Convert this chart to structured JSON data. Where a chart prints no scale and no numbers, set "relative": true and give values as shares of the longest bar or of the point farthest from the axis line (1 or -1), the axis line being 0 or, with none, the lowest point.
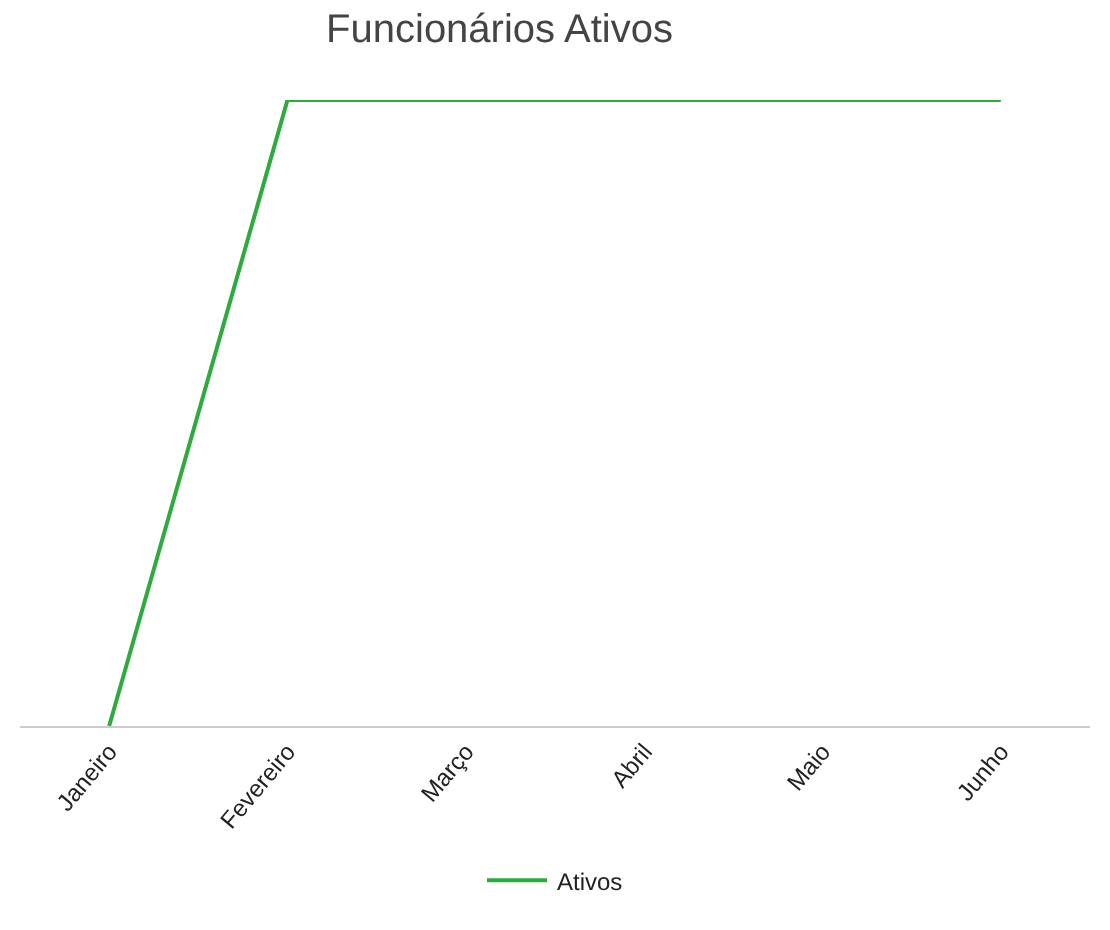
{
  "chart_data": {
    "type": "line",
    "title": "Funcionários Ativos",
    "relative": true,
    "categories": [
      "Janeiro",
      "Fevereiro",
      "Março",
      "Abril",
      "Maio",
      "Junho"
    ],
    "series": [
      {
        "name": "Ativos",
        "color": "#2eaa3e",
        "values": [
          0,
          1,
          1,
          1,
          1,
          1
        ]
      }
    ],
    "legend": "bottom",
    "marker": "none",
    "line_style": "solid"
  }
}
